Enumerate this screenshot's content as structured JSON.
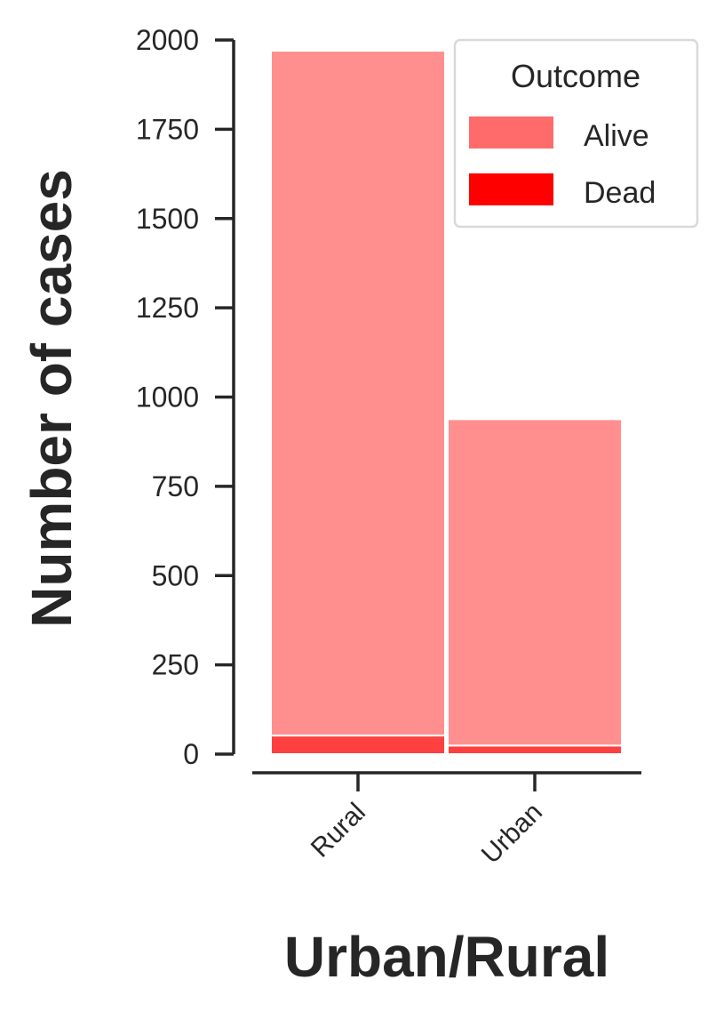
{
  "chart_data": {
    "type": "bar",
    "stacked": true,
    "categories": [
      "Rural",
      "Urban"
    ],
    "series": [
      {
        "name": "Alive",
        "values": [
          1918,
          914
        ],
        "color": "#ff8f8f"
      },
      {
        "name": "Dead",
        "values": [
          52,
          24
        ],
        "color": "#ff4040"
      }
    ],
    "title": "",
    "xlabel": "Urban/Rural",
    "ylabel": "Number of cases",
    "ylim": [
      0,
      2000
    ],
    "yticks": [
      "0",
      "250",
      "500",
      "750",
      "1000",
      "1250",
      "1500",
      "1750",
      "2000"
    ],
    "grid": false,
    "legend": {
      "title": "Outcome",
      "placement": "top-right",
      "entries": [
        {
          "label": "Alive",
          "color": "#ff6b6b"
        },
        {
          "label": "Dead",
          "color": "#ff0000"
        }
      ]
    }
  }
}
